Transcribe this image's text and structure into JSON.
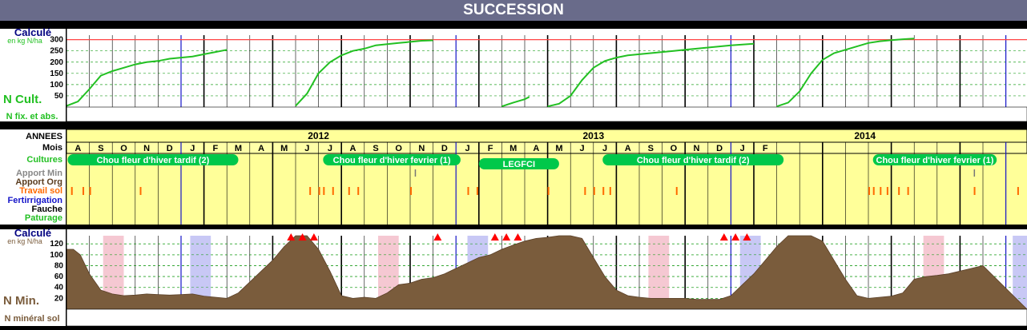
{
  "title": "SUCCESSION",
  "colors": {
    "title_bg": "#696b8a",
    "curve_green": "#22c022",
    "band_yellow": "#ffff99",
    "year_band": "#ffff99",
    "crop_pill": "#00c84a",
    "soil_brown": "#7a5c3c",
    "red_line": "#ff4444",
    "blue_month": "#1414c8",
    "pink_block": "#f5c8d2",
    "lavender_block": "#c8c8f5",
    "travail_orange": "#ff6a00"
  },
  "top_panel": {
    "calc_label": "Calculé",
    "unit_label": "en kg N/ha",
    "series_label": "N Cult.",
    "fix_label": "N fix. et abs.",
    "y_ticks": [
      "300",
      "250",
      "200",
      "150",
      "100",
      "50"
    ],
    "ylim": [
      0,
      320
    ]
  },
  "middle_panel": {
    "row_labels": [
      {
        "text": "ANNEES",
        "color": "#000000"
      },
      {
        "text": "Mois",
        "color": "#000000"
      },
      {
        "text": "Cultures",
        "color": "#22c022"
      },
      {
        "text": "Apport Min",
        "color": "#888888"
      },
      {
        "text": "Apport Org",
        "color": "#5a3c1e"
      },
      {
        "text": "Travail sol",
        "color": "#ff6a00"
      },
      {
        "text": "Fertirrigation",
        "color": "#1414c8"
      },
      {
        "text": "Fauche",
        "color": "#000000"
      },
      {
        "text": "Paturage",
        "color": "#22c022"
      }
    ],
    "years": [
      "2012",
      "2013",
      "2014"
    ],
    "months": [
      "A",
      "S",
      "O",
      "N",
      "D",
      "J",
      "F",
      "M",
      "A",
      "M",
      "J",
      "J",
      "A",
      "S",
      "O",
      "N",
      "D",
      "J",
      "F",
      "M",
      "A",
      "M",
      "J",
      "J",
      "A",
      "S",
      "O",
      "N",
      "D",
      "J",
      "F"
    ],
    "crops": [
      {
        "label": "Chou fleur d'hiver tardif (2)"
      },
      {
        "label": "Chou fleur d'hiver fevrier (1)"
      },
      {
        "label": "LEGFCI"
      },
      {
        "label": "Chou fleur d'hiver tardif (2)"
      },
      {
        "label": "Chou fleur d'hiver fevrier (1)"
      }
    ]
  },
  "bottom_panel": {
    "calc_label": "Calculé",
    "unit_label": "en kg N/ha",
    "series_label": "N Min.",
    "sol_label": "N minéral sol",
    "y_ticks": [
      "120",
      "100",
      "80",
      "60",
      "40",
      "20"
    ],
    "ylim": [
      0,
      135
    ]
  },
  "chart_data": [
    {
      "type": "line",
      "title": "",
      "ylabel": "en kg N/ha",
      "ylim": [
        0,
        320
      ],
      "reference_line": 300,
      "series": [
        {
          "name": "N Cult.",
          "segments": [
            [
              [
                0,
                5
              ],
              [
                0.5,
                25
              ],
              [
                1,
                80
              ],
              [
                1.5,
                140
              ],
              [
                2,
                160
              ],
              [
                2.5,
                175
              ],
              [
                3,
                190
              ],
              [
                3.5,
                200
              ],
              [
                4,
                205
              ],
              [
                4.5,
                215
              ],
              [
                5,
                220
              ],
              [
                5.5,
                225
              ],
              [
                6,
                235
              ],
              [
                6.5,
                245
              ],
              [
                7,
                255
              ]
            ],
            [
              [
                10,
                5
              ],
              [
                10.5,
                60
              ],
              [
                11,
                150
              ],
              [
                11.5,
                200
              ],
              [
                12,
                230
              ],
              [
                12.5,
                250
              ],
              [
                13,
                260
              ],
              [
                13.5,
                275
              ],
              [
                14,
                280
              ],
              [
                14.5,
                285
              ],
              [
                15,
                290
              ],
              [
                15.5,
                295
              ],
              [
                16,
                297
              ]
            ],
            [
              [
                19,
                3
              ],
              [
                19.5,
                20
              ],
              [
                20,
                35
              ],
              [
                20.2,
                45
              ]
            ],
            [
              [
                21,
                3
              ],
              [
                21.5,
                15
              ],
              [
                22,
                50
              ],
              [
                22.5,
                120
              ],
              [
                23,
                175
              ],
              [
                23.5,
                205
              ],
              [
                24,
                220
              ],
              [
                24.5,
                230
              ],
              [
                25,
                235
              ],
              [
                25.5,
                240
              ],
              [
                26,
                245
              ],
              [
                26.5,
                250
              ],
              [
                27,
                255
              ],
              [
                27.5,
                260
              ],
              [
                28,
                265
              ],
              [
                28.5,
                270
              ],
              [
                29,
                275
              ],
              [
                29.5,
                278
              ],
              [
                30,
                282
              ]
            ],
            [
              [
                31,
                3
              ],
              [
                31.5,
                20
              ],
              [
                32,
                70
              ],
              [
                32.5,
                150
              ],
              [
                33,
                210
              ],
              [
                33.5,
                240
              ],
              [
                34,
                255
              ],
              [
                34.5,
                270
              ],
              [
                35,
                285
              ],
              [
                35.5,
                293
              ],
              [
                36,
                298
              ],
              [
                36.5,
                302
              ],
              [
                37,
                305
              ]
            ]
          ]
        }
      ]
    },
    {
      "type": "area",
      "title": "",
      "ylabel": "en kg N/ha",
      "ylim": [
        0,
        135
      ],
      "series": [
        {
          "name": "N Min.",
          "x": [
            0,
            0.3,
            0.6,
            1,
            1.5,
            2,
            2.5,
            3,
            3.5,
            4,
            4.5,
            5,
            5.5,
            6,
            6.5,
            7,
            7.5,
            8,
            8.5,
            9,
            9.5,
            10,
            10.5,
            11,
            11.5,
            12,
            12.5,
            13,
            13.5,
            14,
            14.5,
            15,
            15.5,
            16,
            16.5,
            17,
            17.5,
            18,
            18.5,
            19,
            19.5,
            20,
            20.5,
            21,
            21.5,
            22,
            22.5,
            23,
            23.5,
            24,
            24.5,
            25,
            25.5,
            26,
            26.5,
            27,
            27.5,
            28,
            28.5,
            29,
            29.5,
            30,
            30.5,
            31,
            31.5,
            32,
            32.5,
            33,
            33.5,
            34,
            34.5,
            35,
            35.5,
            36,
            36.5,
            37,
            37.5,
            38,
            38.5,
            39,
            39.5,
            40
          ],
          "values": [
            110,
            110,
            100,
            65,
            35,
            28,
            25,
            26,
            28,
            27,
            26,
            27,
            28,
            24,
            22,
            20,
            30,
            50,
            70,
            90,
            115,
            135,
            135,
            110,
            70,
            25,
            20,
            22,
            20,
            30,
            45,
            48,
            55,
            58,
            65,
            75,
            85,
            95,
            100,
            110,
            118,
            125,
            130,
            132,
            135,
            135,
            130,
            95,
            60,
            35,
            25,
            22,
            20,
            20,
            20,
            20,
            18,
            18,
            18,
            25,
            45,
            65,
            90,
            115,
            135,
            135,
            135,
            125,
            90,
            55,
            25,
            20,
            22,
            24,
            30,
            55,
            60,
            62,
            65,
            70,
            75,
            80
          ]
        }
      ],
      "markers": [
        {
          "x": 9.8,
          "y": 132
        },
        {
          "x": 10.3,
          "y": 132
        },
        {
          "x": 10.8,
          "y": 132
        },
        {
          "x": 16.2,
          "y": 132
        },
        {
          "x": 18.7,
          "y": 132
        },
        {
          "x": 19.2,
          "y": 132
        },
        {
          "x": 19.7,
          "y": 132
        },
        {
          "x": 28.7,
          "y": 132
        },
        {
          "x": 29.2,
          "y": 132
        },
        {
          "x": 29.7,
          "y": 132
        }
      ]
    }
  ]
}
